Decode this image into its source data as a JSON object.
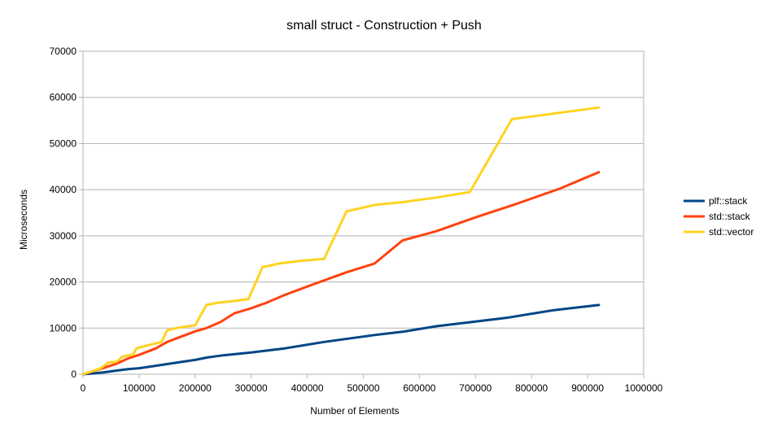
{
  "chart_data": {
    "type": "line",
    "title": "small struct - Construction + Push",
    "xlabel": "Number of Elements",
    "ylabel": "Microseconds",
    "xlim": [
      0,
      1000000
    ],
    "ylim": [
      0,
      70000
    ],
    "x_ticks": [
      0,
      100000,
      200000,
      300000,
      400000,
      500000,
      600000,
      700000,
      800000,
      900000,
      1000000
    ],
    "y_ticks": [
      0,
      10000,
      20000,
      30000,
      40000,
      50000,
      60000,
      70000
    ],
    "grid": "horizontal",
    "legend_position": "right",
    "series": [
      {
        "name": "plf::stack",
        "color": "#004586",
        "points": [
          [
            0,
            0
          ],
          [
            20000,
            200
          ],
          [
            40000,
            450
          ],
          [
            60000,
            800
          ],
          [
            80000,
            1100
          ],
          [
            100000,
            1300
          ],
          [
            120000,
            1650
          ],
          [
            150000,
            2200
          ],
          [
            200000,
            3100
          ],
          [
            220000,
            3600
          ],
          [
            250000,
            4100
          ],
          [
            300000,
            4700
          ],
          [
            360000,
            5600
          ],
          [
            430000,
            7000
          ],
          [
            520000,
            8500
          ],
          [
            570000,
            9200
          ],
          [
            630000,
            10400
          ],
          [
            700000,
            11400
          ],
          [
            760000,
            12300
          ],
          [
            840000,
            13900
          ],
          [
            920000,
            15000
          ]
        ]
      },
      {
        "name": "std::stack",
        "color": "#ff420e",
        "points": [
          [
            0,
            0
          ],
          [
            30000,
            1100
          ],
          [
            60000,
            2300
          ],
          [
            80000,
            3400
          ],
          [
            100000,
            4200
          ],
          [
            130000,
            5600
          ],
          [
            150000,
            7000
          ],
          [
            200000,
            9300
          ],
          [
            220000,
            10000
          ],
          [
            245000,
            11300
          ],
          [
            270000,
            13200
          ],
          [
            300000,
            14300
          ],
          [
            325000,
            15400
          ],
          [
            360000,
            17200
          ],
          [
            400000,
            19000
          ],
          [
            470000,
            22100
          ],
          [
            520000,
            24000
          ],
          [
            570000,
            29000
          ],
          [
            630000,
            31000
          ],
          [
            700000,
            34000
          ],
          [
            770000,
            36800
          ],
          [
            850000,
            40200
          ],
          [
            920000,
            43800
          ]
        ]
      },
      {
        "name": "std::vector",
        "color": "#ffd320",
        "points": [
          [
            0,
            0
          ],
          [
            30000,
            1200
          ],
          [
            45000,
            2500
          ],
          [
            60000,
            2700
          ],
          [
            70000,
            3800
          ],
          [
            90000,
            4300
          ],
          [
            95000,
            5600
          ],
          [
            110000,
            6100
          ],
          [
            120000,
            6400
          ],
          [
            140000,
            7000
          ],
          [
            150000,
            9500
          ],
          [
            170000,
            10100
          ],
          [
            200000,
            10600
          ],
          [
            220000,
            15000
          ],
          [
            240000,
            15500
          ],
          [
            265000,
            15800
          ],
          [
            295000,
            16300
          ],
          [
            320000,
            23200
          ],
          [
            350000,
            24000
          ],
          [
            390000,
            24600
          ],
          [
            430000,
            25000
          ],
          [
            470000,
            35300
          ],
          [
            520000,
            36700
          ],
          [
            570000,
            37300
          ],
          [
            630000,
            38300
          ],
          [
            690000,
            39500
          ],
          [
            765000,
            55300
          ],
          [
            920000,
            57800
          ]
        ]
      }
    ]
  }
}
